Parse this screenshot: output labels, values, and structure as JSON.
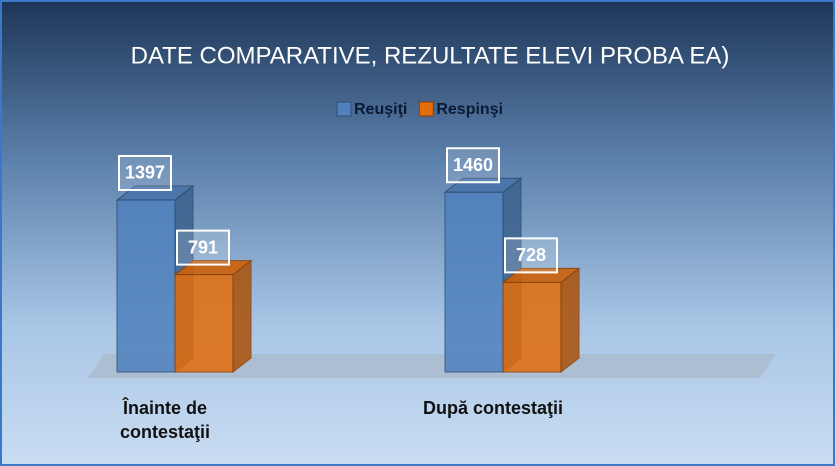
{
  "chart_data": {
    "type": "bar3d",
    "title": "DATE COMPARATIVE, REZULTATE ELEVI PROBA EA)",
    "categories": [
      "Înainte de contestaţii",
      "După contestaţii"
    ],
    "series": [
      {
        "name": "Reuşiţi",
        "color": "#4f81bd",
        "values": [
          1397,
          1460
        ]
      },
      {
        "name": "Respinşi",
        "color": "#e46c0a",
        "values": [
          791,
          728
        ]
      }
    ],
    "ylim": [
      0,
      1600
    ],
    "legend": "top"
  }
}
